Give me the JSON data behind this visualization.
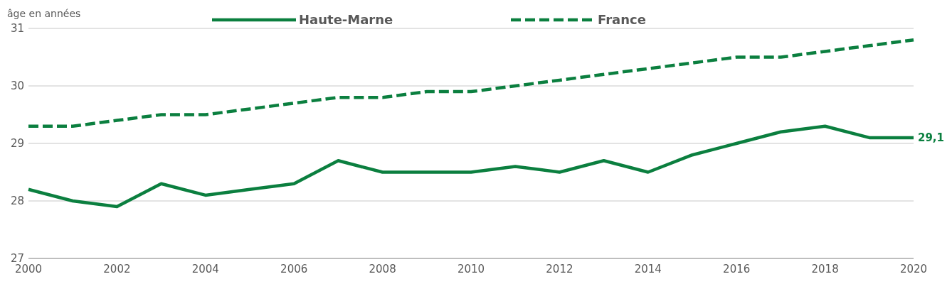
{
  "chart_data": {
    "type": "line",
    "ylabel": "âge en années",
    "x": [
      2000,
      2001,
      2002,
      2003,
      2004,
      2005,
      2006,
      2007,
      2008,
      2009,
      2010,
      2011,
      2012,
      2013,
      2014,
      2015,
      2016,
      2017,
      2018,
      2019,
      2020
    ],
    "series": [
      {
        "name": "Haute-Marne",
        "color": "#0b7f3f",
        "line_style": "solid",
        "values": [
          28.2,
          28.0,
          27.9,
          28.3,
          28.1,
          28.2,
          28.3,
          28.7,
          28.5,
          28.5,
          28.5,
          28.6,
          28.5,
          28.7,
          28.5,
          28.8,
          29.0,
          29.2,
          29.3,
          29.1,
          29.1
        ],
        "value_labels": [
          null,
          null,
          null,
          null,
          null,
          null,
          null,
          null,
          null,
          null,
          null,
          null,
          null,
          null,
          null,
          null,
          null,
          null,
          null,
          null,
          "29,1"
        ]
      },
      {
        "name": "France",
        "color": "#0b7f3f",
        "line_style": "dashed",
        "values": [
          29.3,
          29.3,
          29.4,
          29.5,
          29.5,
          29.6,
          29.7,
          29.8,
          29.8,
          29.9,
          29.9,
          30.0,
          30.1,
          30.2,
          30.3,
          30.4,
          30.5,
          30.5,
          30.6,
          30.7,
          30.8
        ]
      }
    ],
    "xlim": [
      2000,
      2020
    ],
    "xticks": [
      2000,
      2002,
      2004,
      2006,
      2008,
      2010,
      2012,
      2014,
      2016,
      2018,
      2020
    ],
    "ylim": [
      27,
      31
    ],
    "yticks": [
      27,
      28,
      29,
      30,
      31
    ],
    "grid": "y",
    "legend": "top",
    "marker": "none"
  }
}
